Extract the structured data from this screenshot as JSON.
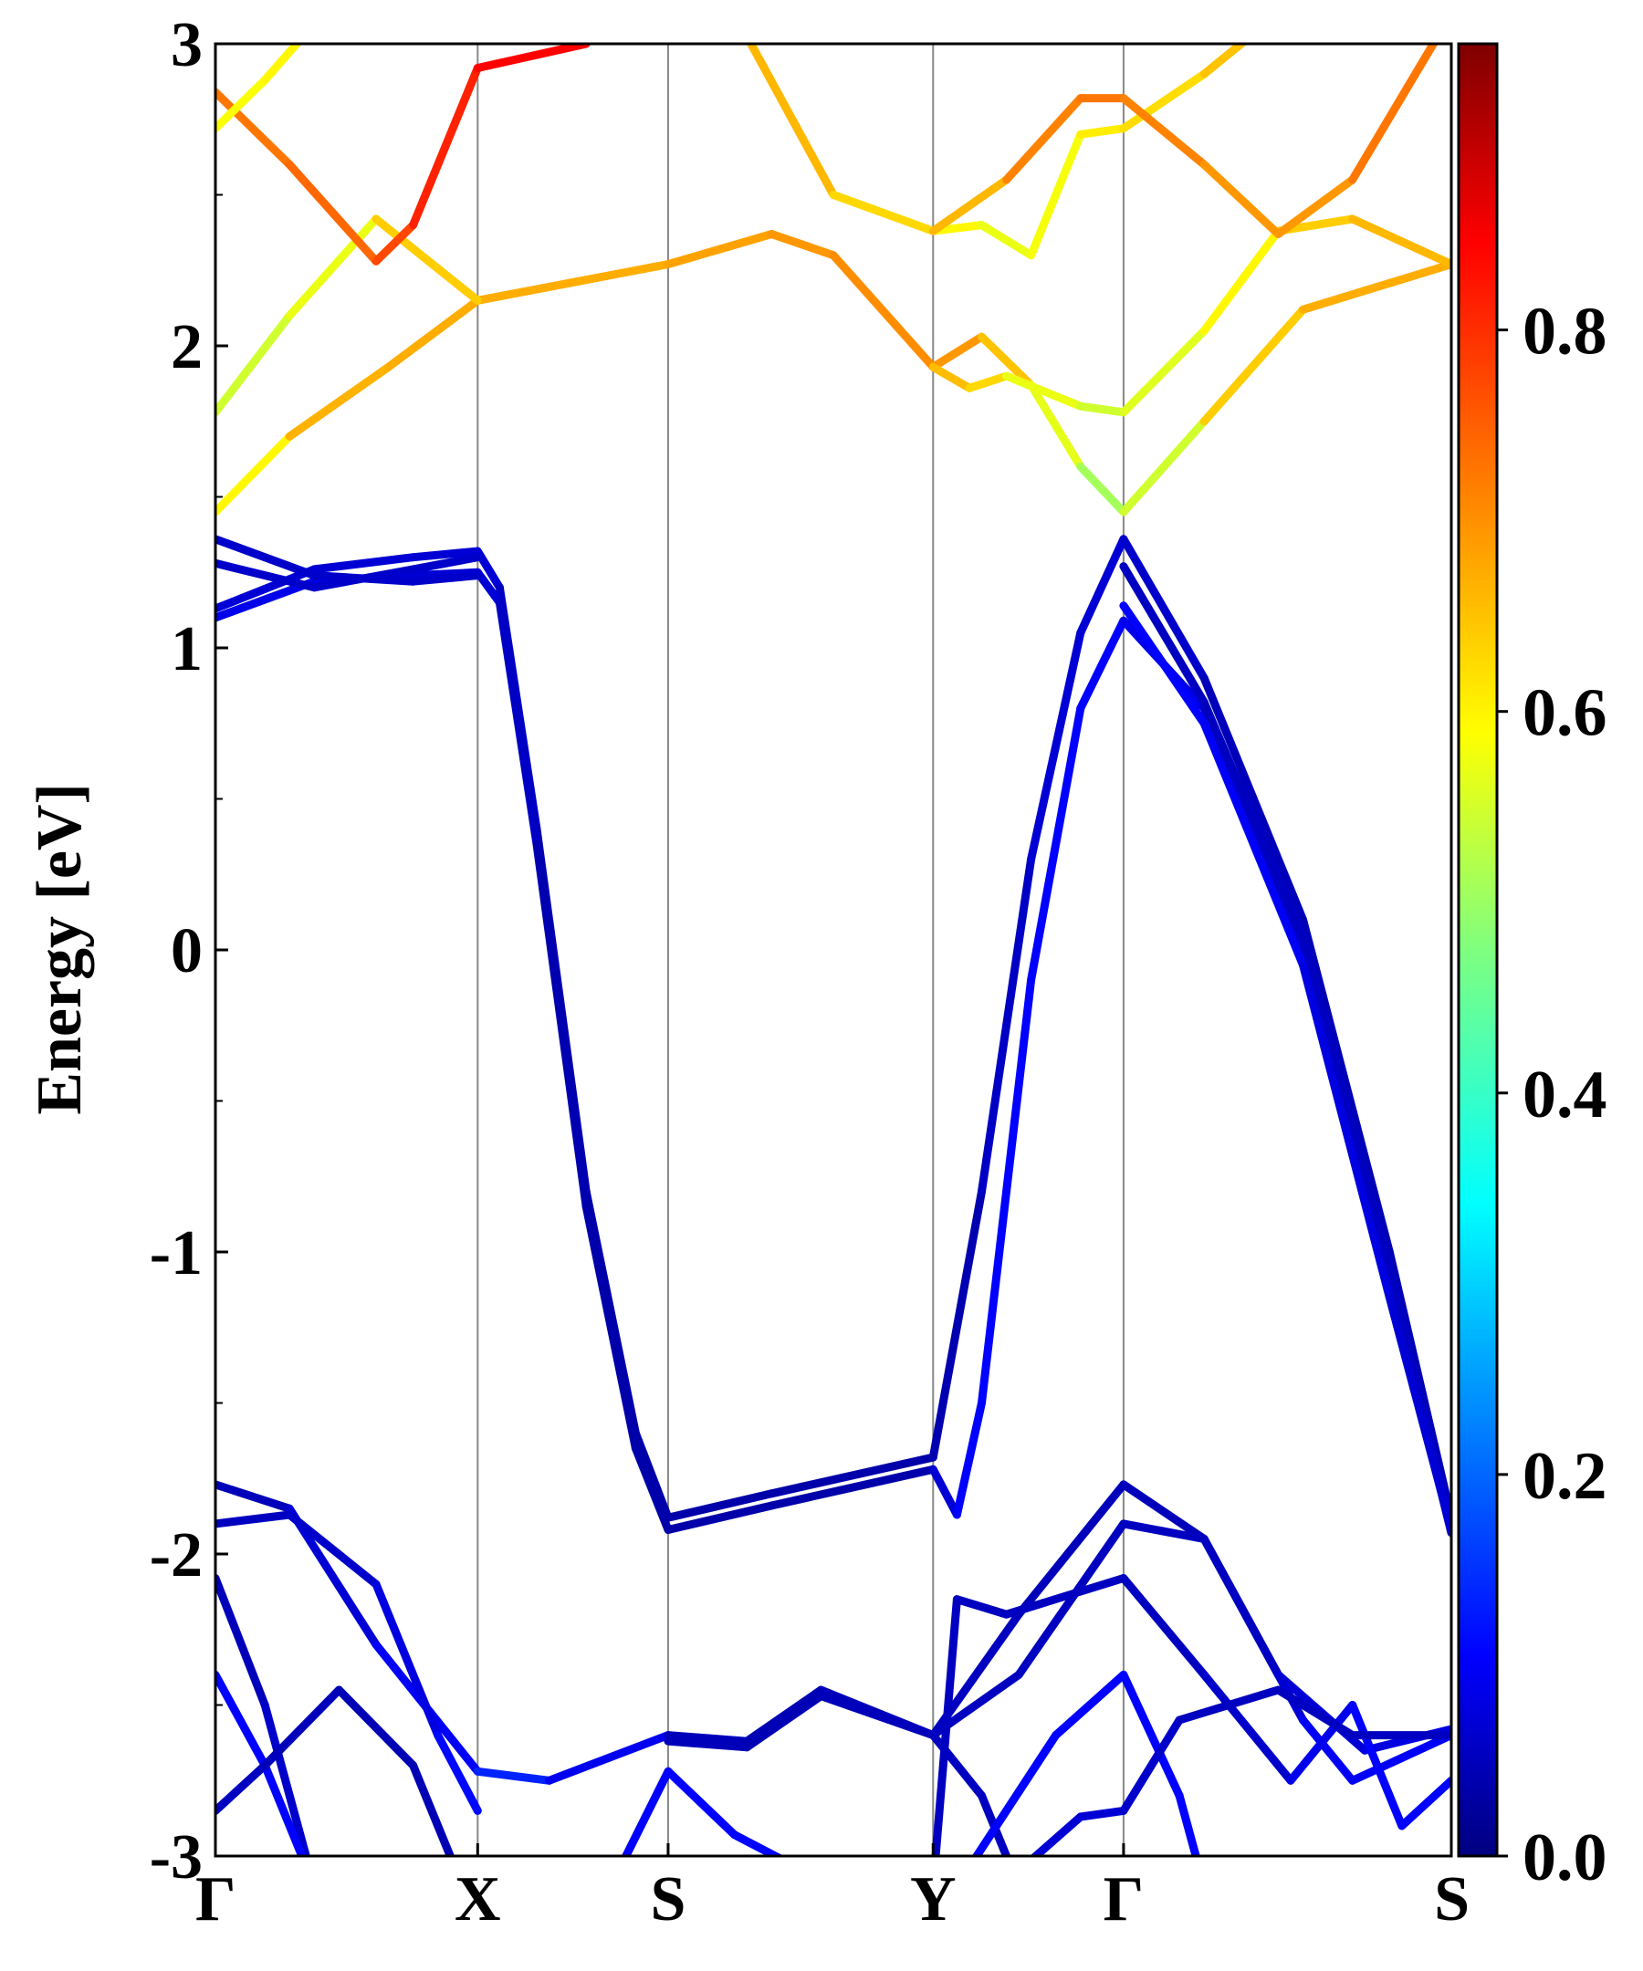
{
  "chart_data": {
    "type": "line",
    "title": "",
    "xlabel": "",
    "ylabel": "Energy [eV]",
    "ylim": [
      -3,
      3
    ],
    "grid": false,
    "y_ticks": [
      "3",
      "2",
      "1",
      "0",
      "-1",
      "-2",
      "-3"
    ],
    "k_path_labels": [
      "Γ",
      "X",
      "S",
      "Y",
      "Γ",
      "S"
    ],
    "k_path_positions": [
      0,
      0.2122,
      0.3663,
      0.5807,
      0.7348,
      1.0
    ],
    "colorbar": {
      "colormap": "jet",
      "range": [
        0,
        0.95
      ],
      "ticks": [
        "0.0",
        "0.2",
        "0.4",
        "0.6",
        "0.8"
      ],
      "tick_values": [
        0,
        0.2,
        0.4,
        0.6,
        0.8
      ]
    },
    "series": [
      {
        "points": [
          [
            0,
            1.13
          ],
          [
            0.08,
            1.26
          ],
          [
            0.16,
            1.3
          ],
          [
            0.2122,
            1.32
          ],
          [
            0.23,
            1.2
          ],
          [
            0.26,
            0.4
          ],
          [
            0.3,
            -0.8
          ],
          [
            0.34,
            -1.6
          ],
          [
            0.3663,
            -1.88
          ],
          [
            0.45,
            -1.8
          ],
          [
            0.5807,
            -1.68
          ],
          [
            0.62,
            -0.8
          ],
          [
            0.66,
            0.3
          ],
          [
            0.7,
            1.05
          ],
          [
            0.7348,
            1.36
          ],
          [
            0.8,
            0.9
          ],
          [
            0.88,
            0.1
          ],
          [
            0.95,
            -1.0
          ],
          [
            1.0,
            -1.88
          ]
        ],
        "values": [
          0.08,
          0.08,
          0.08,
          0.08,
          0.08,
          0.05,
          0.04,
          0.04,
          0.04,
          0.04,
          0.04,
          0.05,
          0.08,
          0.08,
          0.08,
          0.06,
          0.05,
          0.05,
          0.05
        ]
      },
      {
        "points": [
          [
            0,
            1.1
          ],
          [
            0.08,
            1.22
          ],
          [
            0.16,
            1.24
          ],
          [
            0.2122,
            1.25
          ],
          [
            0.23,
            1.15
          ],
          [
            0.26,
            0.35
          ],
          [
            0.3,
            -0.85
          ],
          [
            0.34,
            -1.65
          ],
          [
            0.3663,
            -1.92
          ],
          [
            0.45,
            -1.84
          ],
          [
            0.5807,
            -1.72
          ],
          [
            0.6,
            -1.87
          ],
          [
            0.62,
            -1.5
          ],
          [
            0.66,
            -0.1
          ],
          [
            0.7,
            0.8
          ],
          [
            0.7348,
            1.09
          ],
          [
            0.8,
            0.8
          ],
          [
            0.88,
            0.0
          ],
          [
            0.95,
            -1.1
          ],
          [
            1.0,
            -1.93
          ]
        ],
        "values": [
          0.1,
          0.1,
          0.08,
          0.08,
          0.08,
          0.05,
          0.04,
          0.04,
          0.04,
          0.04,
          0.04,
          0.12,
          0.12,
          0.12,
          0.12,
          0.12,
          0.08,
          0.05,
          0.05,
          0.05
        ]
      },
      {
        "points": [
          [
            0,
            1.36
          ],
          [
            0.08,
            1.24
          ],
          [
            0.16,
            1.22
          ],
          [
            0.2122,
            1.24
          ]
        ],
        "values": [
          0.07,
          0.07,
          0.07,
          0.07
        ]
      },
      {
        "points": [
          [
            0,
            1.28
          ],
          [
            0.08,
            1.2
          ],
          [
            0.16,
            1.26
          ],
          [
            0.2122,
            1.3
          ]
        ],
        "values": [
          0.07,
          0.07,
          0.07,
          0.07
        ]
      },
      {
        "points": [
          [
            0.7348,
            1.27
          ],
          [
            0.8,
            0.82
          ],
          [
            0.88,
            0.05
          ],
          [
            0.95,
            -1.05
          ],
          [
            1.0,
            -1.9
          ]
        ],
        "values": [
          0.06,
          0.06,
          0.06,
          0.06,
          0.06
        ]
      },
      {
        "points": [
          [
            0.7348,
            1.14
          ],
          [
            0.8,
            0.75
          ],
          [
            0.88,
            -0.05
          ],
          [
            0.95,
            -1.15
          ],
          [
            1.0,
            -1.92
          ]
        ],
        "values": [
          0.12,
          0.12,
          0.1,
          0.08,
          0.08
        ]
      },
      {
        "points": [
          [
            0,
            1.45
          ],
          [
            0.06,
            1.7
          ],
          [
            0.14,
            1.93
          ],
          [
            0.2122,
            2.15
          ],
          [
            0.3663,
            2.27
          ],
          [
            0.45,
            2.37
          ],
          [
            0.5,
            2.3
          ],
          [
            0.5807,
            1.93
          ],
          [
            0.62,
            2.03
          ],
          [
            0.66,
            1.87
          ],
          [
            0.7,
            1.6
          ],
          [
            0.7348,
            1.45
          ],
          [
            0.8,
            1.75
          ],
          [
            0.88,
            2.12
          ],
          [
            1.0,
            2.27
          ]
        ],
        "values": [
          0.55,
          0.65,
          0.68,
          0.66,
          0.68,
          0.68,
          0.7,
          0.7,
          0.68,
          0.62,
          0.52,
          0.5,
          0.6,
          0.68,
          0.66
        ]
      },
      {
        "points": [
          [
            0,
            1.78
          ],
          [
            0.06,
            2.1
          ],
          [
            0.13,
            2.42
          ],
          [
            0.2122,
            2.15
          ]
        ],
        "values": [
          0.55,
          0.55,
          0.6,
          0.68
        ]
      },
      {
        "points": [
          [
            0.5807,
            2.38
          ],
          [
            0.62,
            2.4
          ],
          [
            0.66,
            2.3
          ],
          [
            0.7,
            2.7
          ],
          [
            0.7348,
            2.72
          ],
          [
            0.8,
            2.9
          ],
          [
            0.86,
            3.1
          ]
        ],
        "values": [
          0.6,
          0.6,
          0.55,
          0.62,
          0.6,
          0.65,
          0.65
        ]
      },
      {
        "points": [
          [
            0.5807,
            1.93
          ],
          [
            0.61,
            1.86
          ],
          [
            0.64,
            1.9
          ],
          [
            0.7,
            1.8
          ],
          [
            0.7348,
            1.78
          ],
          [
            0.8,
            2.05
          ],
          [
            0.86,
            2.38
          ],
          [
            0.92,
            2.42
          ],
          [
            1.0,
            2.27
          ]
        ],
        "values": [
          0.65,
          0.66,
          0.6,
          0.55,
          0.55,
          0.58,
          0.62,
          0.66,
          0.66
        ]
      },
      {
        "points": [
          [
            0,
            2.84
          ],
          [
            0.06,
            2.6
          ],
          [
            0.13,
            2.28
          ],
          [
            0.16,
            2.4
          ],
          [
            0.2122,
            2.92
          ],
          [
            0.3,
            3.0
          ]
        ],
        "values": [
          0.72,
          0.72,
          0.75,
          0.78,
          0.82,
          0.84
        ]
      },
      {
        "points": [
          [
            0,
            2.72
          ],
          [
            0.04,
            2.88
          ],
          [
            0.07,
            3.02
          ]
        ],
        "values": [
          0.58,
          0.6,
          0.6
        ]
      },
      {
        "points": [
          [
            0.42,
            3.1
          ],
          [
            0.5,
            2.5
          ],
          [
            0.5807,
            2.38
          ],
          [
            0.64,
            2.55
          ],
          [
            0.7,
            2.82
          ],
          [
            0.7348,
            2.82
          ],
          [
            0.8,
            2.6
          ],
          [
            0.86,
            2.37
          ],
          [
            0.92,
            2.55
          ],
          [
            1.0,
            3.1
          ]
        ],
        "values": [
          0.68,
          0.64,
          0.62,
          0.7,
          0.72,
          0.72,
          0.7,
          0.68,
          0.7,
          0.74
        ]
      },
      {
        "points": [
          [
            0,
            -1.77
          ],
          [
            0.06,
            -1.85
          ],
          [
            0.13,
            -2.3
          ],
          [
            0.2122,
            -2.72
          ]
        ],
        "values": [
          0.05,
          0.06,
          0.1,
          0.12
        ]
      },
      {
        "points": [
          [
            0,
            -1.9
          ],
          [
            0.06,
            -1.87
          ],
          [
            0.13,
            -2.1
          ],
          [
            0.18,
            -2.6
          ],
          [
            0.2122,
            -2.85
          ]
        ],
        "values": [
          0.06,
          0.06,
          0.08,
          0.1,
          0.15
        ]
      },
      {
        "points": [
          [
            0,
            -2.08
          ],
          [
            0.04,
            -2.5
          ],
          [
            0.08,
            -3.1
          ]
        ],
        "values": [
          0.05,
          0.06,
          0.08
        ]
      },
      {
        "points": [
          [
            0,
            -2.4
          ],
          [
            0.04,
            -2.7
          ],
          [
            0.08,
            -3.1
          ]
        ],
        "values": [
          0.12,
          0.12,
          0.12
        ]
      },
      {
        "points": [
          [
            0,
            -2.85
          ],
          [
            0.04,
            -2.7
          ],
          [
            0.1,
            -2.45
          ],
          [
            0.16,
            -2.7
          ],
          [
            0.2,
            -3.1
          ]
        ],
        "values": [
          0.06,
          0.06,
          0.05,
          0.05,
          0.05
        ]
      },
      {
        "points": [
          [
            0.2122,
            -2.72
          ],
          [
            0.27,
            -2.75
          ],
          [
            0.3663,
            -2.6
          ],
          [
            0.43,
            -2.62
          ],
          [
            0.49,
            -2.45
          ],
          [
            0.5807,
            -2.6
          ],
          [
            0.65,
            -2.2
          ],
          [
            0.7348,
            -1.77
          ],
          [
            0.8,
            -1.95
          ],
          [
            0.88,
            -2.55
          ],
          [
            0.92,
            -2.75
          ],
          [
            1.0,
            -2.6
          ]
        ],
        "values": [
          0.15,
          0.15,
          0.06,
          0.05,
          0.05,
          0.06,
          0.06,
          0.05,
          0.06,
          0.1,
          0.12,
          0.1
        ]
      },
      {
        "points": [
          [
            0.3663,
            -2.62
          ],
          [
            0.43,
            -2.64
          ],
          [
            0.49,
            -2.47
          ],
          [
            0.5807,
            -2.6
          ],
          [
            0.65,
            -2.4
          ],
          [
            0.7348,
            -1.9
          ],
          [
            0.8,
            -1.95
          ],
          [
            0.86,
            -2.4
          ],
          [
            0.93,
            -2.65
          ],
          [
            1.0,
            -2.58
          ]
        ],
        "values": [
          0.06,
          0.05,
          0.05,
          0.06,
          0.06,
          0.06,
          0.06,
          0.06,
          0.1,
          0.08
        ]
      },
      {
        "points": [
          [
            0.32,
            -3.1
          ],
          [
            0.3663,
            -2.72
          ],
          [
            0.42,
            -2.93
          ],
          [
            0.5,
            -3.1
          ]
        ],
        "values": [
          0.12,
          0.12,
          0.12,
          0.12
        ]
      },
      {
        "points": [
          [
            0.5807,
            -3.1
          ],
          [
            0.6,
            -2.15
          ],
          [
            0.64,
            -2.2
          ],
          [
            0.7348,
            -2.08
          ],
          [
            0.8,
            -2.4
          ],
          [
            0.87,
            -2.75
          ],
          [
            0.92,
            -2.5
          ],
          [
            0.96,
            -2.9
          ],
          [
            1.0,
            -2.75
          ]
        ],
        "values": [
          0.06,
          0.06,
          0.06,
          0.06,
          0.06,
          0.08,
          0.12,
          0.12,
          0.12
        ]
      },
      {
        "points": [
          [
            0.5807,
            -2.6
          ],
          [
            0.62,
            -2.8
          ],
          [
            0.65,
            -3.1
          ]
        ],
        "values": [
          0.06,
          0.06,
          0.06
        ]
      },
      {
        "points": [
          [
            0.6,
            -3.1
          ],
          [
            0.68,
            -2.6
          ],
          [
            0.7348,
            -2.4
          ],
          [
            0.78,
            -2.8
          ],
          [
            0.8,
            -3.1
          ]
        ],
        "values": [
          0.12,
          0.12,
          0.12,
          0.12,
          0.12
        ]
      },
      {
        "points": [
          [
            0.65,
            -3.05
          ],
          [
            0.7,
            -2.87
          ],
          [
            0.7348,
            -2.85
          ],
          [
            0.78,
            -2.55
          ],
          [
            0.86,
            -2.45
          ],
          [
            0.92,
            -2.6
          ],
          [
            1.0,
            -2.6
          ]
        ],
        "values": [
          0.08,
          0.08,
          0.08,
          0.06,
          0.06,
          0.06,
          0.06
        ]
      }
    ]
  }
}
